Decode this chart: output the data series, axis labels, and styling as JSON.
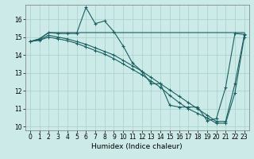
{
  "bg_color": "#cceae8",
  "grid_color": "#aad4d0",
  "line_color": "#1a6060",
  "xlabel": "Humidex (Indice chaleur)",
  "xlim": [
    -0.5,
    23.5
  ],
  "ylim": [
    9.8,
    16.8
  ],
  "yticks": [
    10,
    11,
    12,
    13,
    14,
    15,
    16
  ],
  "xticks": [
    0,
    1,
    2,
    3,
    4,
    5,
    6,
    7,
    8,
    9,
    10,
    11,
    12,
    13,
    14,
    15,
    16,
    17,
    18,
    19,
    20,
    21,
    22,
    23
  ],
  "series1_x": [
    0,
    1,
    2,
    3,
    4,
    5,
    6,
    7,
    8,
    9,
    10,
    11,
    12,
    13,
    14,
    15,
    16,
    17,
    18,
    19,
    20,
    21,
    22,
    23
  ],
  "series1_y": [
    14.75,
    14.9,
    15.25,
    15.2,
    15.2,
    15.2,
    16.65,
    15.75,
    15.9,
    15.3,
    14.5,
    13.55,
    13.1,
    12.4,
    12.4,
    11.2,
    11.1,
    11.1,
    11.1,
    10.35,
    10.45,
    12.2,
    15.2,
    15.15
  ],
  "series2_x": [
    0,
    1,
    2,
    3,
    4,
    5,
    6,
    7,
    8,
    9,
    10,
    11,
    12,
    13,
    14,
    15,
    16,
    17,
    18,
    19,
    20,
    21,
    22,
    23
  ],
  "series2_y": [
    14.75,
    14.9,
    15.25,
    15.25,
    15.25,
    15.25,
    15.25,
    15.25,
    15.25,
    15.25,
    15.25,
    15.25,
    15.25,
    15.25,
    15.25,
    15.25,
    15.25,
    15.25,
    15.25,
    15.25,
    15.25,
    15.25,
    15.25,
    15.25
  ],
  "series3_x": [
    0,
    1,
    2,
    3,
    4,
    5,
    6,
    7,
    8,
    9,
    10,
    11,
    12,
    13,
    14,
    15,
    16,
    17,
    18,
    19,
    20,
    21,
    22,
    23
  ],
  "series3_y": [
    14.75,
    14.85,
    15.1,
    15.0,
    14.9,
    14.75,
    14.6,
    14.4,
    14.2,
    14.0,
    13.7,
    13.4,
    13.1,
    12.75,
    12.4,
    12.05,
    11.7,
    11.35,
    11.0,
    10.65,
    10.3,
    10.3,
    12.4,
    15.1
  ],
  "series4_x": [
    0,
    1,
    2,
    3,
    4,
    5,
    6,
    7,
    8,
    9,
    10,
    11,
    12,
    13,
    14,
    15,
    16,
    17,
    18,
    19,
    20,
    21,
    22,
    23
  ],
  "series4_y": [
    14.75,
    14.82,
    15.0,
    14.9,
    14.8,
    14.65,
    14.45,
    14.25,
    14.05,
    13.8,
    13.5,
    13.2,
    12.9,
    12.55,
    12.2,
    11.75,
    11.35,
    11.0,
    10.75,
    10.5,
    10.2,
    10.2,
    11.9,
    15.0
  ]
}
